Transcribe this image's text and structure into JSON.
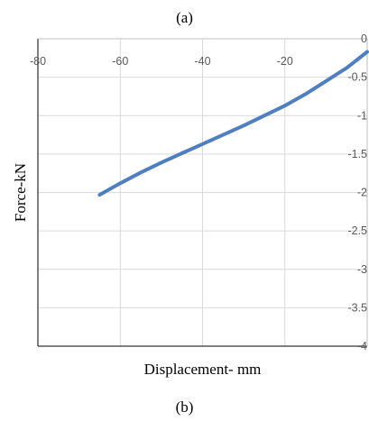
{
  "captions": {
    "top": "(a)",
    "bottom": "(b)"
  },
  "chart_data": {
    "type": "line",
    "title": "",
    "xlabel": "Displacement- mm",
    "ylabel": "Force-kN",
    "xlim": [
      -80,
      0
    ],
    "ylim": [
      -4,
      0
    ],
    "x_ticks": [
      -80,
      -60,
      -40,
      -20
    ],
    "y_ticks": [
      0,
      -0.5,
      -1,
      -1.5,
      -2,
      -2.5,
      -3,
      -3.5,
      -4
    ],
    "x_tick_labels": [
      "-80",
      "-60",
      "-40",
      "-20"
    ],
    "y_tick_labels": [
      "0",
      "-0.5",
      "-1",
      "-1.5",
      "-2",
      "-2.5",
      "-3",
      "-3.5",
      "-4"
    ],
    "x_axis_position": "top",
    "y_axis_position": "right",
    "grid": true,
    "series": [
      {
        "color": "#4f7fbf",
        "x": [
          -65,
          -60,
          -55,
          -50,
          -45,
          -40,
          -35,
          -30,
          -25,
          -20,
          -15,
          -10,
          -5,
          0
        ],
        "y": [
          -2.03,
          -1.88,
          -1.74,
          -1.61,
          -1.49,
          -1.37,
          -1.25,
          -1.13,
          -1.0,
          -0.87,
          -0.72,
          -0.55,
          -0.38,
          -0.17
        ]
      }
    ]
  }
}
